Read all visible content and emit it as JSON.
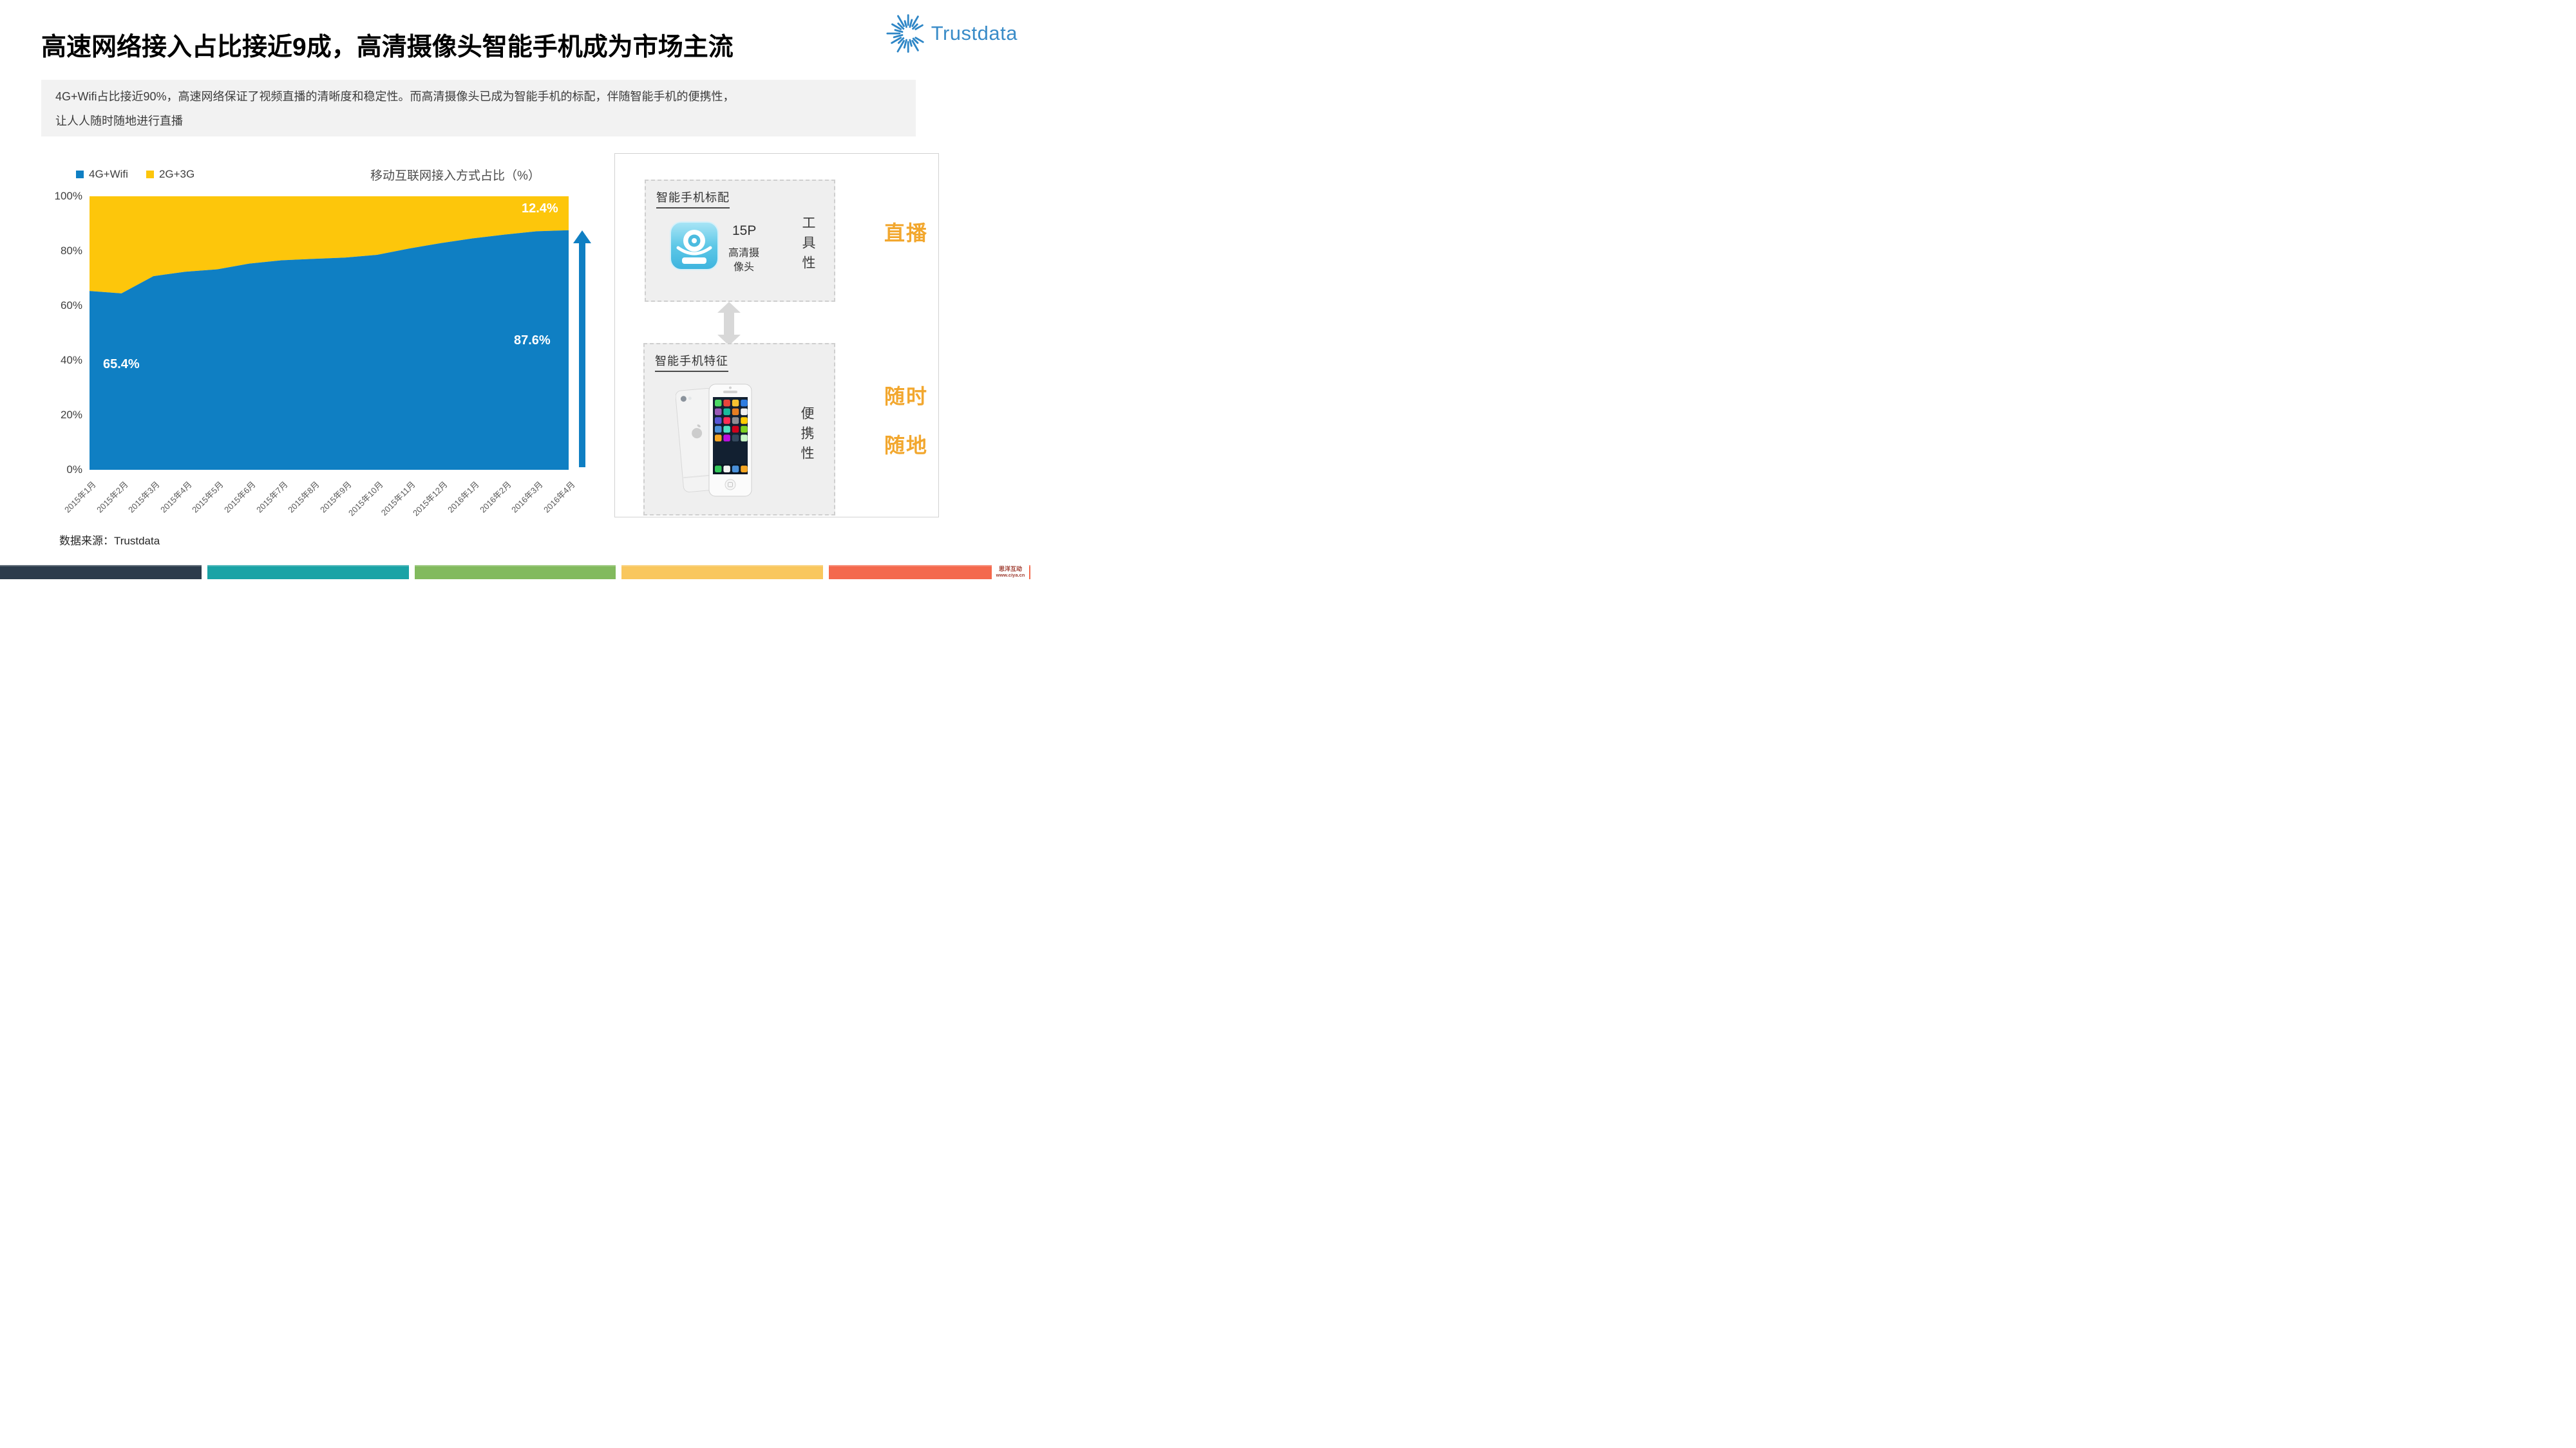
{
  "header": {
    "title": "高速网络接入占比接近9成，高清摄像头智能手机成为市场主流",
    "logo_text": "Trustdata"
  },
  "summary": {
    "line1": "4G+Wifi占比接近90%，高速网络保证了视频直播的清晰度和稳定性。而高清摄像头已成为智能手机的标配，伴随智能手机的便携性，",
    "line2": "让人人随时随地进行直播"
  },
  "chart_data": {
    "type": "area",
    "stacked": true,
    "title": "移动互联网接入方式占比（%）",
    "categories": [
      "2015年1月",
      "2015年2月",
      "2015年3月",
      "2015年4月",
      "2015年5月",
      "2015年6月",
      "2015年7月",
      "2015年8月",
      "2015年9月",
      "2015年10月",
      "2015年11月",
      "2015年12月",
      "2016年1月",
      "2016年2月",
      "2016年3月",
      "2016年4月"
    ],
    "series": [
      {
        "name": "4G+Wifi",
        "color": "#0f7fc3",
        "values": [
          65.4,
          64.5,
          70.8,
          72.4,
          73.3,
          75.4,
          76.6,
          77.1,
          77.6,
          78.6,
          80.9,
          82.9,
          84.6,
          86.0,
          87.2,
          87.6
        ]
      },
      {
        "name": "2G+3G",
        "color": "#fdc60b",
        "values": [
          34.6,
          35.5,
          29.2,
          27.6,
          26.7,
          24.6,
          23.4,
          22.9,
          22.4,
          21.4,
          19.1,
          17.1,
          15.4,
          14.0,
          12.8,
          12.4
        ]
      }
    ],
    "ylim": [
      0,
      100
    ],
    "yticks": [
      "0%",
      "20%",
      "40%",
      "60%",
      "80%",
      "100%"
    ],
    "grid": false,
    "legend_position": "top-left",
    "annotations": [
      {
        "series": "4G+Wifi",
        "category": "2015年1月",
        "text": "65.4%"
      },
      {
        "series": "4G+Wifi",
        "category": "2016年4月",
        "text": "87.6%"
      },
      {
        "series": "2G+3G",
        "category": "2016年4月",
        "text": "12.4%"
      }
    ]
  },
  "panel": {
    "box1": {
      "title": "智能手机标配",
      "icon": "webcam-icon",
      "spec": "15P",
      "spec_sub": "高清摄像头",
      "vertical_label": "工具性",
      "highlight": "直播"
    },
    "box2": {
      "title": "智能手机特征",
      "icon": "smartphone-image",
      "vertical_label": "便携性",
      "highlight1": "随时",
      "highlight2": "随地"
    }
  },
  "footer": {
    "source": "数据来源：Trustdata",
    "watermark_line1": "思洋互动",
    "watermark_line2": "www.ciya.cn",
    "bar_colors": [
      "#2c3c4c",
      "#1aa3a6",
      "#82ba5e",
      "#f9c75e",
      "#f4694d"
    ]
  },
  "colors": {
    "accent_blue": "#0f7fc3",
    "accent_yellow": "#fdc60b",
    "highlight_orange": "#f2a72e",
    "logo_blue": "#3a8cc8"
  }
}
